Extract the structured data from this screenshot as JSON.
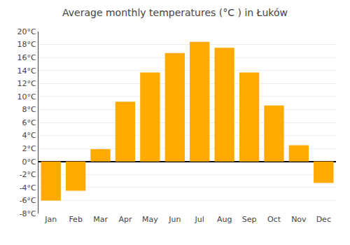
{
  "chart_data": {
    "type": "bar",
    "title": "Average monthly temperatures (°C ) in Łuków",
    "categories": [
      "Jan",
      "Feb",
      "Mar",
      "Apr",
      "May",
      "Jun",
      "Jul",
      "Aug",
      "Sep",
      "Oct",
      "Nov",
      "Dec"
    ],
    "values": [
      -6.0,
      -4.5,
      1.9,
      9.2,
      13.7,
      16.7,
      18.4,
      17.5,
      13.7,
      8.6,
      2.5,
      -3.3
    ],
    "color": "#FFAA00",
    "ylim": [
      -8,
      20
    ],
    "yticks": [
      {
        "value": -8,
        "label": "-8°C"
      },
      {
        "value": -6,
        "label": "-6°C"
      },
      {
        "value": -4,
        "label": "-4°C"
      },
      {
        "value": -2,
        "label": "-2°C"
      },
      {
        "value": 0,
        "label": "0°C"
      },
      {
        "value": 2,
        "label": "2°C"
      },
      {
        "value": 4,
        "label": "4°C"
      },
      {
        "value": 6,
        "label": "6°C"
      },
      {
        "value": 8,
        "label": "8°C"
      },
      {
        "value": 10,
        "label": "10°C"
      },
      {
        "value": 12,
        "label": "12°C"
      },
      {
        "value": 14,
        "label": "14°C"
      },
      {
        "value": 16,
        "label": "16°C"
      },
      {
        "value": 18,
        "label": "18°C"
      },
      {
        "value": 20,
        "label": "20°C"
      }
    ],
    "grid": true
  }
}
